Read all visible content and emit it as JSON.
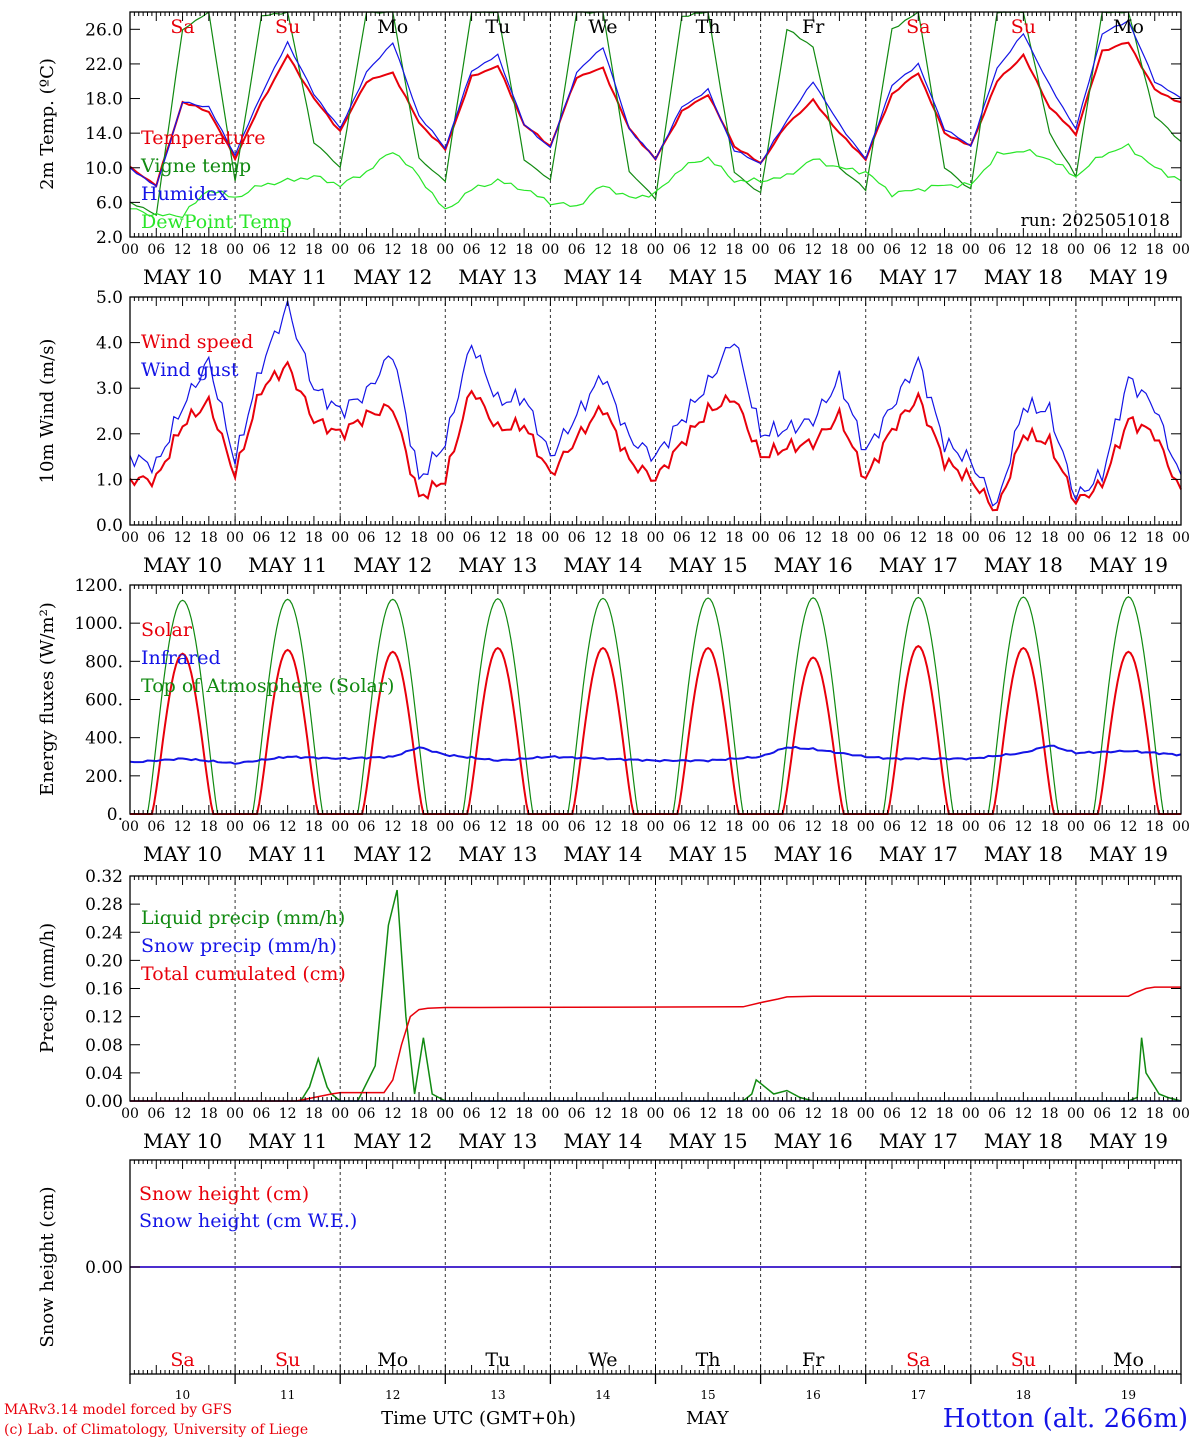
{
  "days": {
    "names": [
      "Sa",
      "Su",
      "Mo",
      "Tu",
      "We",
      "Th",
      "Fr",
      "Sa",
      "Su",
      "Mo"
    ],
    "colors": [
      "#e8000b",
      "#e8000b",
      "#000000",
      "#000000",
      "#000000",
      "#000000",
      "#000000",
      "#e8000b",
      "#e8000b",
      "#000000"
    ],
    "dates": [
      "MAY 10",
      "MAY 11",
      "MAY 12",
      "MAY 13",
      "MAY 14",
      "MAY 15",
      "MAY 16",
      "MAY 17",
      "MAY 18",
      "MAY 19"
    ],
    "numbers": [
      "10",
      "11",
      "12",
      "13",
      "14",
      "15",
      "16",
      "17",
      "18",
      "19"
    ],
    "hour_ticks": [
      "00",
      "06",
      "12",
      "18"
    ],
    "final_hour": "00"
  },
  "colors": {
    "red": "#e8000b",
    "green": "#118a11",
    "blue": "#1414e6",
    "lightgreen": "#29e629"
  },
  "run_label": "run: 2025051018",
  "xaxis_title": "Time UTC (GMT+0h)",
  "month_label": "MAY",
  "footer": {
    "model": "MARv3.14 model forced by GFS",
    "copyright": "(c) Lab. of Climatology, University of Liege",
    "station": "Hotton (alt. 266m)"
  },
  "chart_data": [
    {
      "type": "line",
      "ylabel": "2m Temp. (ºC)",
      "ylim": [
        2.0,
        28.0
      ],
      "yticks": [
        "2.0",
        "6.0",
        "10.0",
        "14.0",
        "18.0",
        "22.0",
        "26.0"
      ],
      "x_hours": [
        0,
        6,
        12,
        18,
        24,
        30,
        36,
        42,
        48,
        54,
        60,
        66,
        72,
        78,
        84,
        90,
        96,
        102,
        108,
        114,
        120,
        126,
        132,
        138,
        144,
        150,
        156,
        162,
        168,
        174,
        180,
        186,
        192,
        198,
        204,
        210,
        216,
        222,
        228,
        234,
        240
      ],
      "series": [
        {
          "name": "Temperature",
          "color": "red",
          "values": [
            10.0,
            8.0,
            17.6,
            16.5,
            11.1,
            17.5,
            23.0,
            18.0,
            14.2,
            20.0,
            21.0,
            15.2,
            12.1,
            20.5,
            21.8,
            15.0,
            12.5,
            20.5,
            21.5,
            14.5,
            11.0,
            16.5,
            18.5,
            12.5,
            10.5,
            15.0,
            17.8,
            14.0,
            11.0,
            18.5,
            21.0,
            14.0,
            12.5,
            20.0,
            23.0,
            17.0,
            13.9,
            23.5,
            24.5,
            19.0,
            17.5
          ]
        },
        {
          "name": "Vigne temp",
          "color": "green",
          "values": [
            6.0,
            4.6,
            26.0,
            28.0,
            8.5,
            27.5,
            28.0,
            13.0,
            10.0,
            28.0,
            28.0,
            11.0,
            8.5,
            28.0,
            28.0,
            11.0,
            8.5,
            28.0,
            28.0,
            9.5,
            6.5,
            27.5,
            28.0,
            9.5,
            7.0,
            26.0,
            24.0,
            10.0,
            7.5,
            26.0,
            28.0,
            10.0,
            7.5,
            28.0,
            28.0,
            14.0,
            9.0,
            28.0,
            28.0,
            16.0,
            13.0
          ]
        },
        {
          "name": "Humidex",
          "color": "blue",
          "values": [
            10.0,
            7.8,
            17.6,
            17.0,
            11.5,
            18.5,
            24.5,
            18.5,
            14.5,
            21.0,
            24.5,
            16.0,
            12.3,
            21.2,
            23.0,
            15.0,
            12.3,
            21.0,
            24.0,
            14.5,
            11.0,
            17.0,
            19.0,
            12.0,
            10.5,
            15.5,
            20.0,
            15.0,
            11.0,
            19.5,
            22.0,
            14.5,
            12.5,
            21.5,
            25.5,
            19.5,
            14.5,
            25.5,
            27.0,
            20.0,
            18.0
          ]
        },
        {
          "name": "DewPoint Temp",
          "color": "lightgreen",
          "values": [
            5.3,
            4.5,
            4.5,
            7.5,
            6.5,
            8.0,
            8.5,
            9.0,
            8.0,
            9.5,
            12.0,
            9.0,
            5.0,
            7.5,
            8.5,
            7.5,
            6.0,
            5.5,
            8.0,
            6.5,
            7.0,
            10.0,
            11.2,
            8.5,
            8.5,
            9.0,
            11.0,
            10.0,
            9.5,
            7.0,
            7.5,
            8.0,
            8.0,
            11.5,
            12.0,
            11.0,
            9.0,
            11.5,
            12.5,
            10.0,
            8.5
          ]
        }
      ]
    },
    {
      "type": "line",
      "ylabel": "10m Wind (m/s)",
      "ylim": [
        0.0,
        5.0
      ],
      "yticks": [
        "0.0",
        "1.0",
        "2.0",
        "3.0",
        "4.0",
        "5.0"
      ],
      "x_hours": [
        0,
        6,
        12,
        18,
        24,
        30,
        36,
        42,
        48,
        54,
        60,
        66,
        72,
        78,
        84,
        90,
        96,
        102,
        108,
        114,
        120,
        126,
        132,
        138,
        144,
        150,
        156,
        162,
        168,
        174,
        180,
        186,
        192,
        198,
        204,
        210,
        216,
        222,
        228,
        234,
        240
      ],
      "series": [
        {
          "name": "Wind speed",
          "color": "red",
          "values": [
            1.0,
            1.0,
            2.2,
            2.7,
            1.1,
            3.0,
            3.5,
            2.3,
            2.0,
            2.4,
            2.6,
            0.6,
            1.0,
            3.0,
            2.1,
            2.2,
            1.1,
            1.9,
            2.6,
            1.4,
            1.0,
            1.8,
            2.5,
            2.8,
            1.5,
            1.7,
            1.8,
            2.4,
            1.0,
            2.1,
            2.8,
            1.4,
            1.0,
            0.3,
            2.0,
            1.8,
            0.5,
            0.9,
            2.3,
            2.0,
            0.7
          ]
        },
        {
          "name": "Wind gust",
          "color": "blue",
          "values": [
            1.5,
            1.3,
            2.6,
            3.6,
            1.4,
            3.5,
            4.8,
            3.0,
            2.5,
            2.9,
            3.8,
            1.0,
            1.8,
            4.0,
            2.7,
            2.8,
            1.5,
            2.4,
            3.3,
            1.9,
            1.5,
            2.3,
            3.1,
            4.1,
            2.0,
            2.1,
            2.3,
            3.2,
            1.6,
            2.6,
            3.6,
            1.8,
            1.4,
            0.4,
            2.6,
            2.5,
            0.6,
            1.1,
            3.2,
            2.6,
            1.0
          ]
        }
      ]
    },
    {
      "type": "line",
      "ylabel": "Energy fluxes (W/m²)",
      "ylim": [
        0,
        1200
      ],
      "yticks": [
        "0.",
        "200.",
        "400.",
        "600.",
        "800.",
        "1000.",
        "1200."
      ],
      "daily_peaks": {
        "solar": [
          840,
          860,
          850,
          870,
          870,
          870,
          820,
          880,
          870,
          850
        ],
        "top_of_atmosphere": [
          1120,
          1125,
          1125,
          1128,
          1130,
          1132,
          1133,
          1135,
          1137,
          1138
        ]
      },
      "series": [
        {
          "name": "Solar",
          "color": "red"
        },
        {
          "name": "Infrared",
          "color": "blue",
          "x_hours": [
            0,
            12,
            24,
            36,
            48,
            60,
            66,
            72,
            84,
            96,
            108,
            120,
            132,
            144,
            150,
            156,
            168,
            174,
            180,
            192,
            204,
            210,
            216,
            228,
            240
          ],
          "values": [
            270,
            290,
            265,
            300,
            290,
            300,
            350,
            310,
            280,
            300,
            290,
            280,
            280,
            300,
            350,
            340,
            300,
            290,
            290,
            290,
            320,
            360,
            320,
            330,
            310
          ]
        },
        {
          "name": "Top of Atmosphere (Solar)",
          "color": "green"
        }
      ]
    },
    {
      "type": "line",
      "ylabel": "Precip (mm/h)",
      "ylim": [
        0.0,
        0.32
      ],
      "yticks": [
        "0.00",
        "0.04",
        "0.08",
        "0.12",
        "0.16",
        "0.20",
        "0.24",
        "0.28",
        "0.32"
      ],
      "series": [
        {
          "name": "Liquid precip (mm/h)",
          "color": "green",
          "x_hours": [
            0,
            39,
            41,
            43,
            45,
            46,
            48,
            52,
            56,
            59,
            61,
            63,
            65,
            67,
            69,
            72,
            140,
            142,
            143,
            145,
            147,
            150,
            153,
            156,
            228,
            230,
            231,
            232,
            234,
            235,
            237,
            240
          ],
          "values": [
            0,
            0,
            0.02,
            0.06,
            0.02,
            0.01,
            0,
            0,
            0.05,
            0.25,
            0.3,
            0.12,
            0.01,
            0.09,
            0.01,
            0,
            0,
            0.01,
            0.03,
            0.02,
            0.01,
            0.015,
            0.005,
            0,
            0,
            0.005,
            0.09,
            0.04,
            0.02,
            0.01,
            0.005,
            0
          ]
        },
        {
          "name": "Snow precip (mm/h)",
          "color": "blue",
          "x_hours": [
            0,
            240
          ],
          "values": [
            0,
            0
          ]
        },
        {
          "name": "Total cumulated (cm)",
          "color": "red",
          "x_hours": [
            0,
            38,
            42,
            46,
            48,
            58,
            60,
            62,
            64,
            66,
            68,
            72,
            80,
            140,
            144,
            148,
            150,
            156,
            228,
            230,
            232,
            234,
            240
          ],
          "values": [
            0,
            0,
            0.005,
            0.01,
            0.012,
            0.012,
            0.03,
            0.08,
            0.12,
            0.13,
            0.132,
            0.133,
            0.133,
            0.134,
            0.14,
            0.145,
            0.148,
            0.149,
            0.149,
            0.155,
            0.16,
            0.162,
            0.162
          ]
        }
      ]
    },
    {
      "type": "line",
      "ylabel": "Snow height (cm)",
      "ylim": [
        -0.5,
        0.5
      ],
      "yticks": [
        "0.00"
      ],
      "series": [
        {
          "name": "Snow height (cm)",
          "color": "red",
          "x_hours": [
            0,
            240
          ],
          "values": [
            0,
            0
          ]
        },
        {
          "name": "Snow height (cm W.E.)",
          "color": "blue",
          "x_hours": [
            0,
            240
          ],
          "values": [
            0,
            0
          ]
        }
      ]
    }
  ]
}
